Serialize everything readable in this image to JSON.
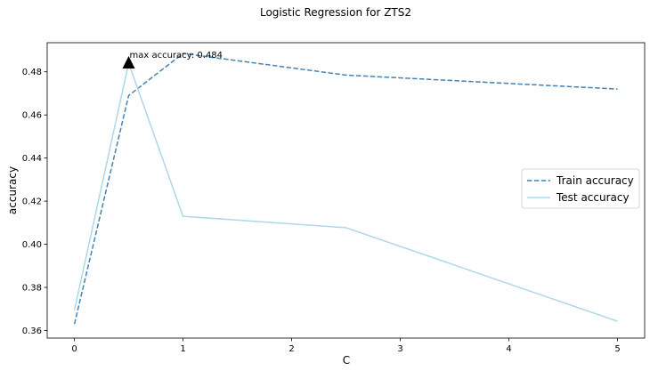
{
  "chart_data": {
    "type": "line",
    "title": "Logistic Regression for ZTS2",
    "xlabel": "C",
    "ylabel": "accuracy",
    "x": [
      0.001,
      0.5,
      1,
      2.5,
      5
    ],
    "xlim": [
      -0.25,
      5.25
    ],
    "ylim": [
      0.3565,
      0.4935
    ],
    "xticks": [
      0,
      1,
      2,
      3,
      4,
      5
    ],
    "xtick_labels": [
      "0",
      "1",
      "2",
      "3",
      "4",
      "5"
    ],
    "yticks": [
      0.36,
      0.38,
      0.4,
      0.42,
      0.44,
      0.46,
      0.48
    ],
    "ytick_labels": [
      "0.36",
      "0.38",
      "0.40",
      "0.42",
      "0.44",
      "0.46",
      "0.48"
    ],
    "grid": false,
    "legend": "center-right",
    "series": [
      {
        "name": "Train accuracy",
        "values": [
          0.363,
          0.469,
          0.4885,
          0.4785,
          0.472
        ],
        "color": "#4682b4",
        "style": "dashed"
      },
      {
        "name": "Test accuracy",
        "values": [
          0.3695,
          0.484,
          0.413,
          0.4077,
          0.3643
        ],
        "color": "#add8e6",
        "style": "solid"
      }
    ],
    "annotations": [
      {
        "text": "max accuracy: 0.484",
        "x": 0.5,
        "y": 0.484,
        "marker": "triangle",
        "color": "#000000"
      }
    ]
  }
}
